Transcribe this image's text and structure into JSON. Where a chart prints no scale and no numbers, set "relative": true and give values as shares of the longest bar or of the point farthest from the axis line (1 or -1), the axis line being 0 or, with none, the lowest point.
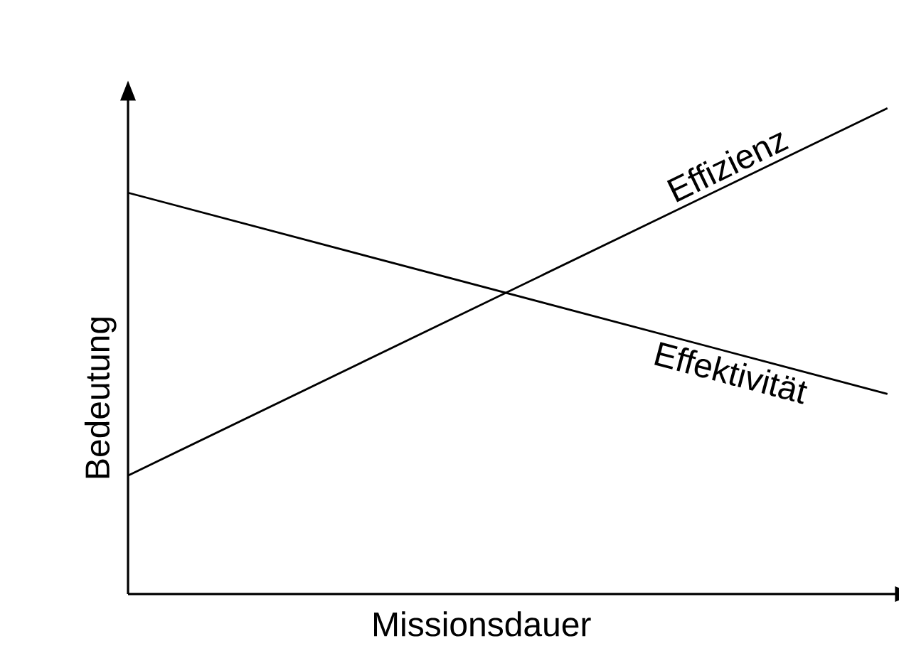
{
  "chart_data": {
    "type": "line",
    "xlabel": "Missionsdauer",
    "ylabel": "Bedeutung",
    "relative": true,
    "categories": [
      null,
      null
    ],
    "marker": "none",
    "line_style": "solid",
    "series": [
      {
        "name": "Effizienz",
        "color": "#000000",
        "values": [
          0.244,
          1.0
        ]
      },
      {
        "name": "Effektivität",
        "color": "#000000",
        "values": [
          0.826,
          0.412
        ]
      }
    ]
  }
}
